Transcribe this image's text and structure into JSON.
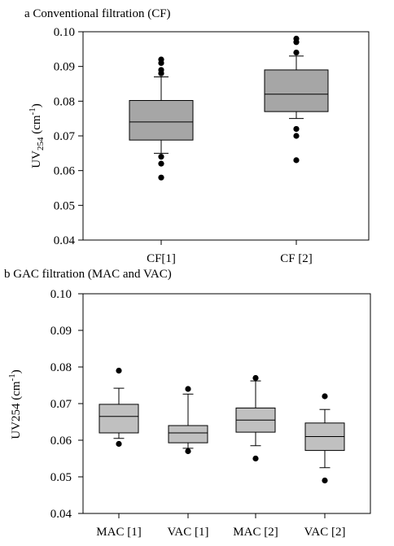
{
  "chart_data": [
    {
      "type": "boxplot",
      "title": "a Conventional filtration (CF)",
      "ylabel": "UV254 (cm-1)",
      "ylabel_parts": {
        "main": "UV",
        "sub": "254",
        "unit_open": " (cm",
        "sup": "-1",
        "unit_close": ")"
      },
      "xlabel": "",
      "ylim": [
        0.04,
        0.1
      ],
      "yticks": [
        "0.04",
        "0.05",
        "0.06",
        "0.07",
        "0.08",
        "0.09",
        "0.10"
      ],
      "grid": false,
      "legend": "none",
      "box_color": "#a6a6a6",
      "categories": [
        "CF[1]",
        "CF [2]"
      ],
      "boxes": [
        {
          "whisker_low": 0.065,
          "q1": 0.0688,
          "median": 0.074,
          "q3": 0.0802,
          "whisker_high": 0.087,
          "outliers": [
            0.092,
            0.091,
            0.089,
            0.088,
            0.064,
            0.062,
            0.058
          ]
        },
        {
          "whisker_low": 0.075,
          "q1": 0.077,
          "median": 0.082,
          "q3": 0.089,
          "whisker_high": 0.093,
          "outliers": [
            0.098,
            0.097,
            0.094,
            0.072,
            0.07,
            0.063
          ]
        }
      ]
    },
    {
      "type": "boxplot",
      "title": "b GAC filtration (MAC and VAC)",
      "ylabel": "UV254 (cm-1)",
      "ylabel_parts": {
        "main": "UV254 (cm",
        "sup": "-1",
        "unit_close": ")"
      },
      "xlabel": "",
      "ylim": [
        0.04,
        0.1
      ],
      "yticks": [
        "0.04",
        "0.05",
        "0.06",
        "0.07",
        "0.08",
        "0.09",
        "0.10"
      ],
      "grid": false,
      "legend": "none",
      "box_color": "#c0c0c0",
      "categories": [
        "MAC [1]",
        "VAC [1]",
        "MAC [2]",
        "VAC [2]"
      ],
      "boxes": [
        {
          "whisker_low": 0.0605,
          "q1": 0.062,
          "median": 0.0665,
          "q3": 0.0698,
          "whisker_high": 0.0742,
          "outliers": [
            0.079,
            0.059
          ]
        },
        {
          "whisker_low": 0.0578,
          "q1": 0.0593,
          "median": 0.062,
          "q3": 0.064,
          "whisker_high": 0.0726,
          "outliers": [
            0.074,
            0.057
          ]
        },
        {
          "whisker_low": 0.0585,
          "q1": 0.0622,
          "median": 0.0655,
          "q3": 0.0688,
          "whisker_high": 0.0762,
          "outliers": [
            0.077,
            0.055
          ]
        },
        {
          "whisker_low": 0.0525,
          "q1": 0.0572,
          "median": 0.061,
          "q3": 0.0647,
          "whisker_high": 0.0684,
          "outliers": [
            0.072,
            0.049
          ]
        }
      ]
    }
  ]
}
